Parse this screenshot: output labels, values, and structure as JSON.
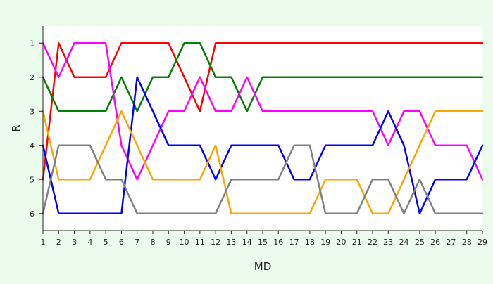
{
  "chart_data": {
    "type": "line",
    "title": "",
    "xlabel": "MD",
    "ylabel": "R",
    "x": [
      1,
      2,
      3,
      4,
      5,
      6,
      7,
      8,
      9,
      10,
      11,
      12,
      13,
      14,
      15,
      16,
      17,
      18,
      19,
      20,
      21,
      22,
      23,
      24,
      25,
      26,
      27,
      28,
      29
    ],
    "xlim": [
      1,
      29
    ],
    "ylim": [
      6.5,
      0.5
    ],
    "y_inverted": true,
    "yticks": [
      1,
      2,
      3,
      4,
      5,
      6
    ],
    "grid": false,
    "legend": "none",
    "series": [
      {
        "color": "#ff0000",
        "values": [
          5,
          1,
          2,
          2,
          2,
          1,
          1,
          1,
          1,
          2,
          3,
          1,
          1,
          1,
          1,
          1,
          1,
          1,
          1,
          1,
          1,
          1,
          1,
          1,
          1,
          1,
          1,
          1,
          1
        ]
      },
      {
        "color": "#008000",
        "values": [
          2,
          3,
          3,
          3,
          3,
          2,
          3,
          2,
          2,
          1,
          1,
          2,
          2,
          3,
          2,
          2,
          2,
          2,
          2,
          2,
          2,
          2,
          2,
          2,
          2,
          2,
          2,
          2,
          2
        ]
      },
      {
        "color": "#ff00ff",
        "values": [
          1,
          2,
          1,
          1,
          1,
          4,
          5,
          4,
          3,
          3,
          2,
          3,
          3,
          2,
          3,
          3,
          3,
          3,
          3,
          3,
          3,
          3,
          4,
          3,
          3,
          4,
          4,
          4,
          5
        ]
      },
      {
        "color": "#0000ff",
        "values": [
          4,
          6,
          6,
          6,
          6,
          6,
          2,
          3,
          4,
          4,
          4,
          5,
          4,
          4,
          4,
          4,
          5,
          5,
          4,
          4,
          4,
          4,
          3,
          4,
          6,
          5,
          5,
          5,
          4
        ]
      },
      {
        "color": "#ffa500",
        "values": [
          3,
          5,
          5,
          5,
          4,
          3,
          4,
          5,
          5,
          5,
          5,
          4,
          6,
          6,
          6,
          6,
          6,
          6,
          5,
          5,
          5,
          6,
          6,
          5,
          4,
          3,
          3,
          3,
          3
        ]
      },
      {
        "color": "#808080",
        "values": [
          6,
          4,
          4,
          4,
          5,
          5,
          6,
          6,
          6,
          6,
          6,
          6,
          5,
          5,
          5,
          5,
          4,
          4,
          6,
          6,
          6,
          5,
          5,
          6,
          5,
          6,
          6,
          6,
          6
        ]
      }
    ]
  }
}
